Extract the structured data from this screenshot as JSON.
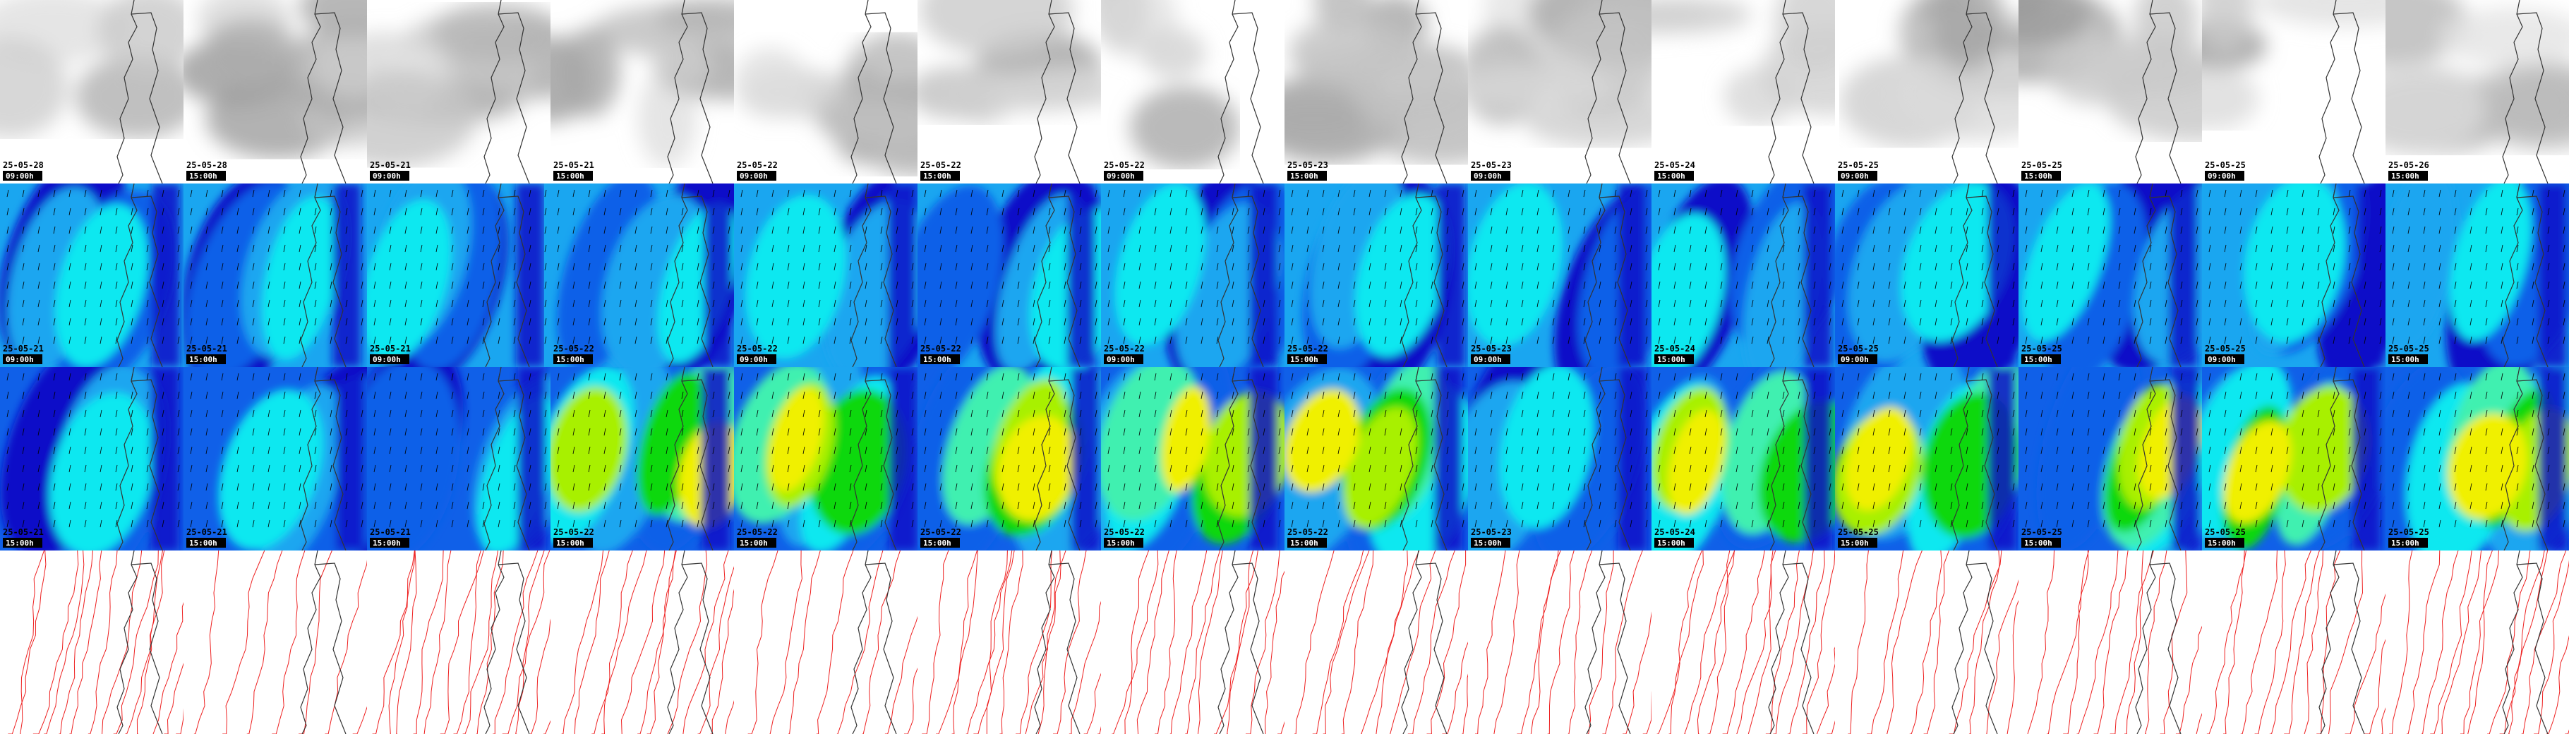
{
  "rows": [
    {
      "name": "cloud-cover",
      "labels": [
        [
          "25-05-28",
          "09:00h"
        ],
        [
          "25-05-28",
          "15:00h"
        ],
        [
          "25-05-21",
          "09:00h"
        ],
        [
          "25-05-21",
          "15:00h"
        ],
        [
          "25-05-22",
          "09:00h"
        ],
        [
          "25-05-22",
          "15:00h"
        ],
        [
          "25-05-22",
          "09:00h"
        ],
        [
          "25-05-23",
          "15:00h"
        ],
        [
          "25-05-23",
          "09:00h"
        ],
        [
          "25-05-24",
          "15:00h"
        ],
        [
          "25-05-25",
          "09:00h"
        ],
        [
          "25-05-25",
          "15:00h"
        ],
        [
          "25-05-25",
          "09:00h"
        ],
        [
          "25-05-26",
          "15:00h"
        ]
      ]
    },
    {
      "name": "wind-field-morning",
      "labels": [
        [
          "25-05-21",
          "09:00h"
        ],
        [
          "25-05-21",
          "15:00h"
        ],
        [
          "25-05-21",
          "09:00h"
        ],
        [
          "25-05-22",
          "15:00h"
        ],
        [
          "25-05-22",
          "09:00h"
        ],
        [
          "25-05-22",
          "15:00h"
        ],
        [
          "25-05-22",
          "09:00h"
        ],
        [
          "25-05-22",
          "15:00h"
        ],
        [
          "25-05-23",
          "09:00h"
        ],
        [
          "25-05-24",
          "15:00h"
        ],
        [
          "25-05-25",
          "09:00h"
        ],
        [
          "25-05-25",
          "15:00h"
        ],
        [
          "25-05-25",
          "09:00h"
        ],
        [
          "25-05-25",
          "15:00h"
        ]
      ]
    },
    {
      "name": "wind-field-afternoon",
      "labels": [
        [
          "25-05-21",
          "15:00h"
        ],
        [
          "25-05-21",
          "15:00h"
        ],
        [
          "25-05-21",
          "15:00h"
        ],
        [
          "25-05-22",
          "15:00h"
        ],
        [
          "25-05-22",
          "15:00h"
        ],
        [
          "25-05-22",
          "15:00h"
        ],
        [
          "25-05-22",
          "15:00h"
        ],
        [
          "25-05-22",
          "15:00h"
        ],
        [
          "25-05-23",
          "15:00h"
        ],
        [
          "25-05-24",
          "15:00h"
        ],
        [
          "25-05-25",
          "15:00h"
        ],
        [
          "25-05-25",
          "15:00h"
        ],
        [
          "25-05-25",
          "15:00h"
        ],
        [
          "25-05-25",
          "15:00h"
        ]
      ]
    },
    {
      "name": "pressure-contours",
      "labels": []
    }
  ],
  "colors": {
    "deep_blue": "#0a10c8",
    "blue": "#1060e8",
    "light_blue": "#1aa6f0",
    "cyan": "#10e8f0",
    "aqua_green": "#40f0b0",
    "green": "#10d810",
    "yellow_green": "#a8f000",
    "yellow": "#f0f000",
    "contour_red": "#ee2020",
    "coast": "#333333",
    "label_bg": "#000000",
    "label_fg": "#ffffff"
  }
}
